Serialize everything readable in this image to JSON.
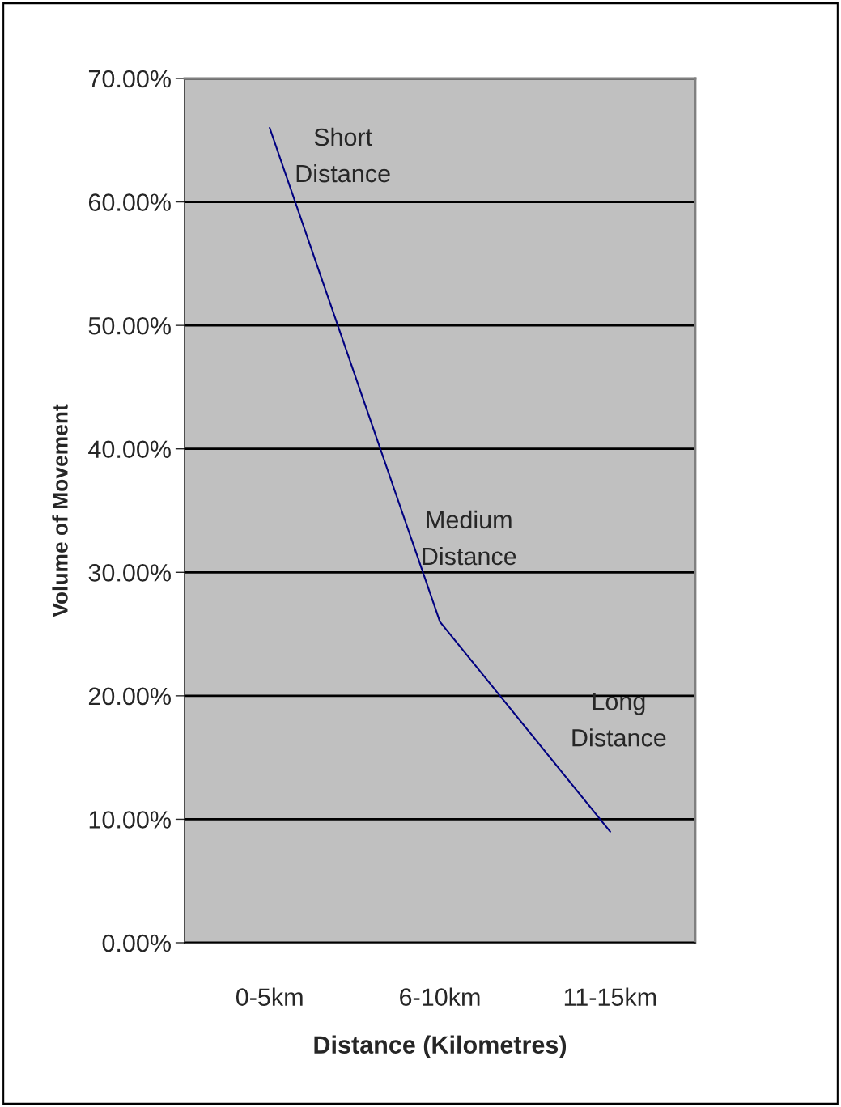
{
  "chart_data": {
    "type": "line",
    "categories": [
      "0-5km",
      "6-10km",
      "11-15km"
    ],
    "values": [
      66,
      26,
      9
    ],
    "color": "#000080",
    "xlabel": "Distance (Kilometres)",
    "ylabel": "Volume of Movement",
    "ylim": [
      0,
      70
    ],
    "yticks": [
      {
        "value": 0,
        "label": "0.00%"
      },
      {
        "value": 10,
        "label": "10.00%"
      },
      {
        "value": 20,
        "label": "20.00%"
      },
      {
        "value": 30,
        "label": "30.00%"
      },
      {
        "value": 40,
        "label": "40.00%"
      },
      {
        "value": 50,
        "label": "50.00%"
      },
      {
        "value": 60,
        "label": "60.00%"
      },
      {
        "value": 70,
        "label": "70.00%"
      }
    ],
    "grid": "y",
    "marker": "none",
    "line_style": "solid",
    "annotations": [
      "Short\nDistance",
      "Medium\nDistance",
      "Long\nDistance"
    ]
  }
}
